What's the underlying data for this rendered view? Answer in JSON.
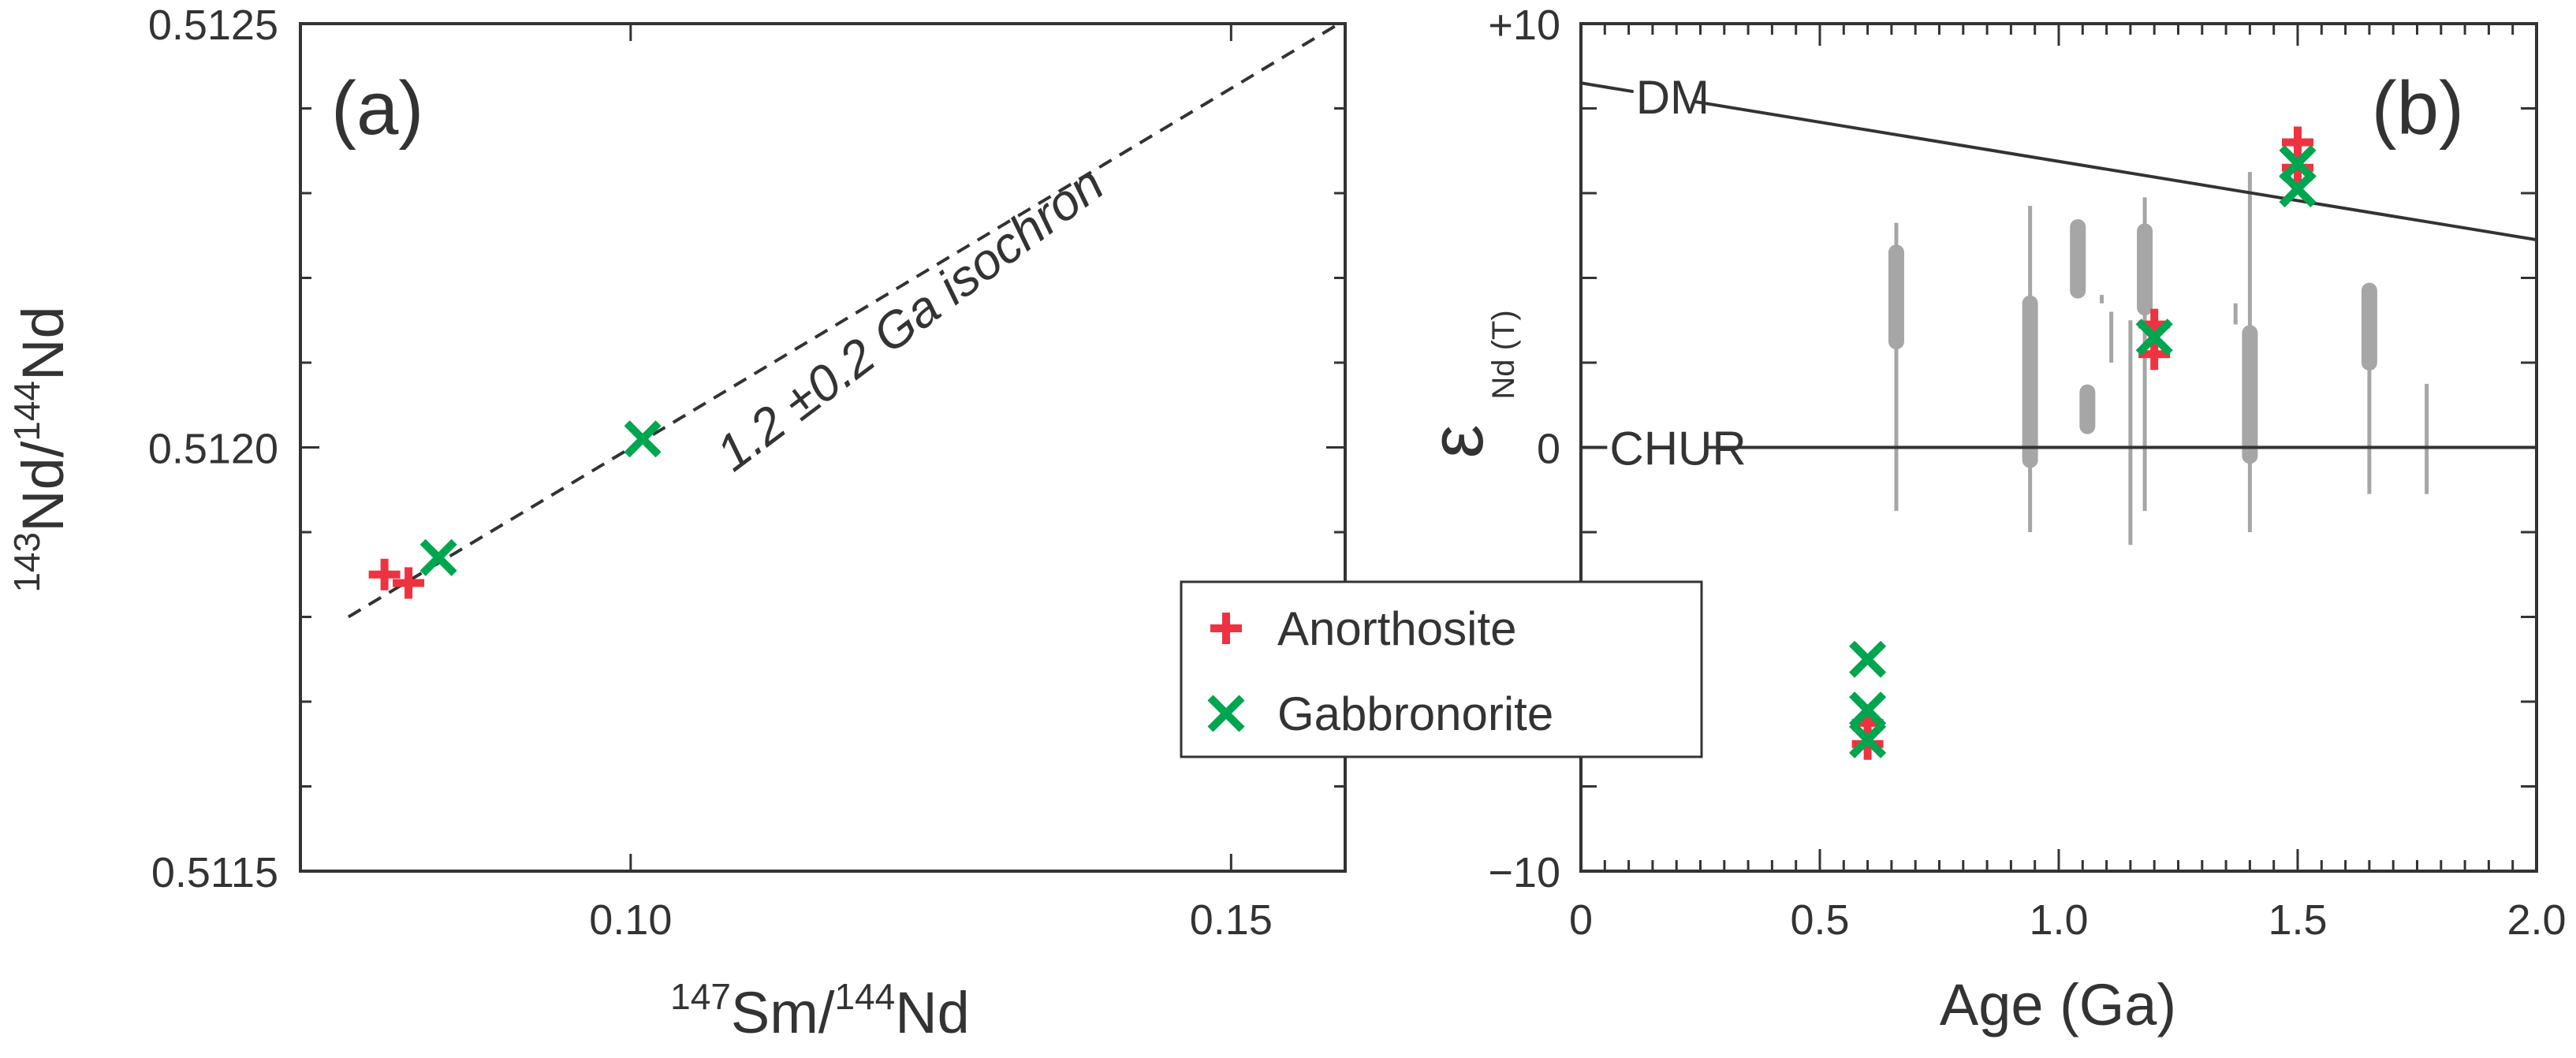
{
  "chart_data": [
    {
      "type": "scatter",
      "panel_label": "(a)",
      "xlabel": {
        "sup1": "147",
        "t1": "Sm/",
        "sup2": "144",
        "t2": "Nd"
      },
      "ylabel": {
        "sup1": "143",
        "t1": "Nd/",
        "sup2": "144",
        "t2": "Nd"
      },
      "xlim": [
        0.0725,
        0.1595
      ],
      "ylim": [
        0.5115,
        0.5125
      ],
      "xticks": [
        {
          "v": 0.1,
          "label": "0.10"
        },
        {
          "v": 0.15,
          "label": "0.15"
        }
      ],
      "yticks": [
        {
          "v": 0.5115,
          "label": "0.5115"
        },
        {
          "v": 0.512,
          "label": "0.5120"
        },
        {
          "v": 0.5125,
          "label": "0.5125"
        }
      ],
      "isochron": {
        "label": "1.2 ±0.2 Ga isochron",
        "x": [
          0.0765,
          0.159
        ],
        "y": [
          0.5118,
          0.5125
        ]
      },
      "series": [
        {
          "name": "Anorthosite",
          "marker": "plus",
          "color": "#ee3340",
          "points": [
            [
              0.0795,
              0.51185
            ],
            [
              0.0815,
              0.51184
            ]
          ]
        },
        {
          "name": "Gabbronorite",
          "marker": "x",
          "color": "#00a550",
          "points": [
            [
              0.084,
              0.51187
            ],
            [
              0.101,
              0.51201
            ]
          ]
        }
      ]
    },
    {
      "type": "scatter",
      "panel_label": "(b)",
      "xlabel": "Age (Ga)",
      "ylabel": {
        "eps": "ε",
        "sub": "Nd (T)"
      },
      "xlim": [
        0,
        2.0
      ],
      "ylim": [
        -10,
        10
      ],
      "xticks": [
        {
          "v": 0,
          "label": "0"
        },
        {
          "v": 0.5,
          "label": "0.5"
        },
        {
          "v": 1.0,
          "label": "1.0"
        },
        {
          "v": 1.5,
          "label": "1.5"
        },
        {
          "v": 2.0,
          "label": "2.0"
        }
      ],
      "yticks": [
        {
          "v": -10,
          "label": "−10"
        },
        {
          "v": 0,
          "label": "0"
        },
        {
          "v": 10,
          "label": "+10"
        }
      ],
      "reference_lines": [
        {
          "name": "DM",
          "x": [
            0,
            2.0
          ],
          "y": [
            8.6,
            4.9
          ]
        },
        {
          "name": "CHUR",
          "x": [
            0,
            2.0
          ],
          "y": [
            0,
            0
          ]
        }
      ],
      "literature_ranges": [
        {
          "age": 0.66,
          "min": -1.5,
          "max": 5.3,
          "bar_min": 2.5,
          "bar_max": 4.6
        },
        {
          "age": 0.94,
          "min": -2.0,
          "max": 5.7,
          "bar_min": -0.3,
          "bar_max": 3.4
        },
        {
          "age": 1.04,
          "min": 3.7,
          "max": 5.2,
          "bar_min": 3.7,
          "bar_max": 5.2
        },
        {
          "age": 1.06,
          "min": 0.5,
          "max": 1.3,
          "bar_min": 0.5,
          "bar_max": 1.3
        },
        {
          "age": 1.09,
          "min": 3.4,
          "max": 3.6
        },
        {
          "age": 1.11,
          "min": 2.0,
          "max": 3.2
        },
        {
          "age": 1.15,
          "min": -2.3,
          "max": 3.0
        },
        {
          "age": 1.18,
          "min": -1.5,
          "max": 5.9,
          "bar_min": 3.3,
          "bar_max": 5.1
        },
        {
          "age": 1.37,
          "min": 2.9,
          "max": 3.4
        },
        {
          "age": 1.4,
          "min": -2.0,
          "max": 6.5,
          "bar_min": -0.2,
          "bar_max": 2.7
        },
        {
          "age": 1.65,
          "min": -1.1,
          "max": 3.8,
          "bar_min": 2.0,
          "bar_max": 3.7
        },
        {
          "age": 1.77,
          "min": -1.1,
          "max": 1.5
        }
      ],
      "series": [
        {
          "name": "Anorthosite",
          "marker": "plus",
          "color": "#ee3340",
          "points": [
            [
              0.6,
              -6.5
            ],
            [
              0.6,
              -7.0
            ],
            [
              1.2,
              2.9
            ],
            [
              1.2,
              2.2
            ],
            [
              1.5,
              7.2
            ],
            [
              1.5,
              6.6
            ]
          ]
        },
        {
          "name": "Gabbronorite",
          "marker": "x",
          "color": "#00a550",
          "points": [
            [
              0.6,
              -5.0
            ],
            [
              0.6,
              -6.2
            ],
            [
              0.6,
              -6.9
            ],
            [
              1.2,
              2.6
            ],
            [
              1.5,
              6.7
            ],
            [
              1.5,
              6.1
            ]
          ]
        }
      ]
    }
  ],
  "legend": [
    {
      "label": "Anorthosite",
      "marker": "plus",
      "color": "#ee3340"
    },
    {
      "label": "Gabbronorite",
      "marker": "x",
      "color": "#00a550"
    }
  ]
}
